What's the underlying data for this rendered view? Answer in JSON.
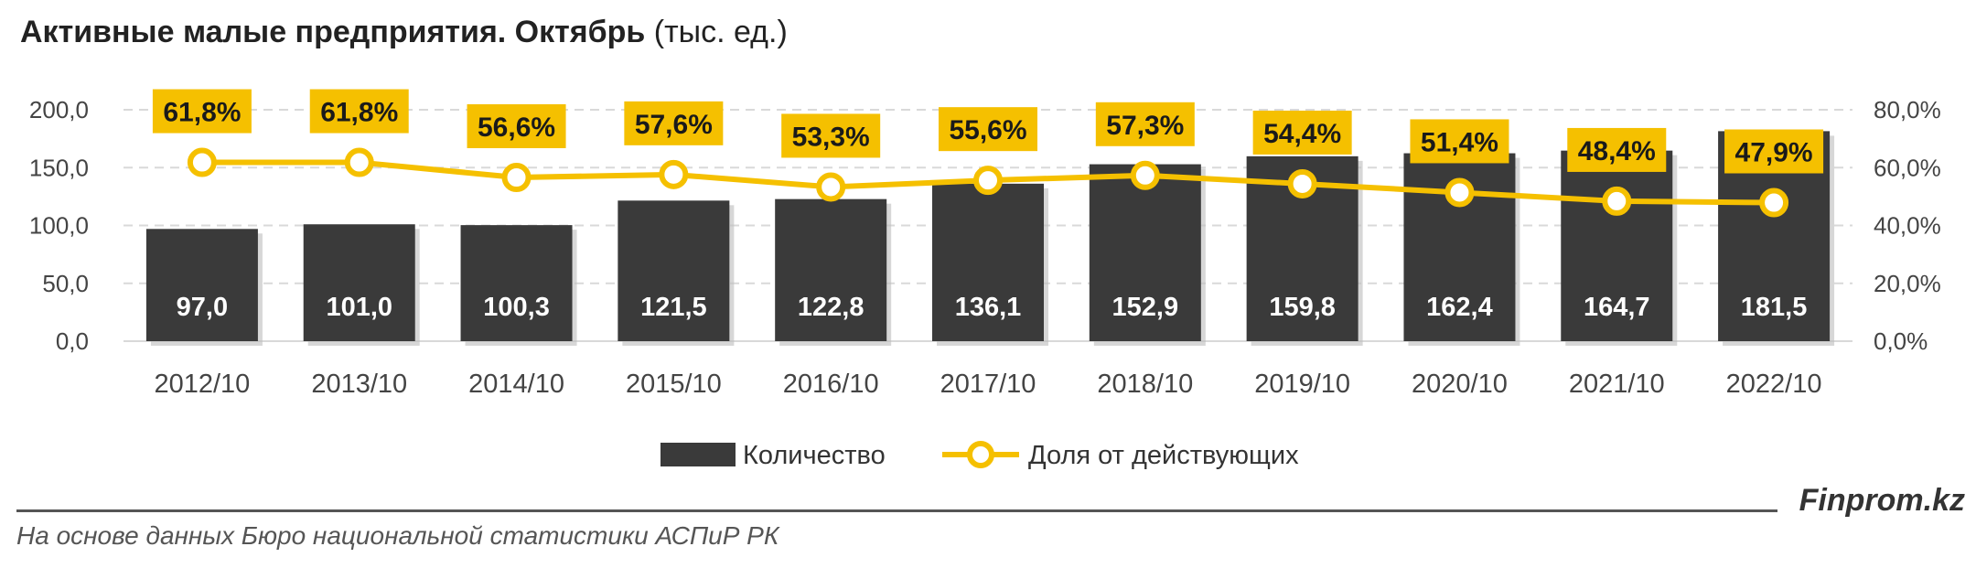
{
  "header": {
    "title_bold": "Активные малые предприятия. Октябрь",
    "title_unit": "(тыс. ед.)"
  },
  "chart_data": {
    "type": "bar",
    "categories": [
      "2012/10",
      "2013/10",
      "2014/10",
      "2015/10",
      "2016/10",
      "2017/10",
      "2018/10",
      "2019/10",
      "2020/10",
      "2021/10",
      "2022/10"
    ],
    "series": [
      {
        "name": "Количество",
        "type": "bar",
        "axis": "left",
        "color": "#3a3a3a",
        "values": [
          97.0,
          101.0,
          100.3,
          121.5,
          122.8,
          136.1,
          152.9,
          159.8,
          162.4,
          164.7,
          181.5
        ],
        "labels": [
          "97,0",
          "101,0",
          "100,3",
          "121,5",
          "122,8",
          "136,1",
          "152,9",
          "159,8",
          "162,4",
          "164,7",
          "181,5"
        ]
      },
      {
        "name": "Доля от действующих",
        "type": "line",
        "axis": "right",
        "color": "#f5c000",
        "values": [
          61.8,
          61.8,
          56.6,
          57.6,
          53.3,
          55.6,
          57.3,
          54.4,
          51.4,
          48.4,
          47.9
        ],
        "labels": [
          "61,8%",
          "61,8%",
          "56,6%",
          "57,6%",
          "53,3%",
          "55,6%",
          "57,3%",
          "54,4%",
          "51,4%",
          "48,4%",
          "47,9%"
        ]
      }
    ],
    "y_left": {
      "range": [
        0,
        200
      ],
      "ticks": [
        "0,0",
        "50,0",
        "100,0",
        "150,0",
        "200,0"
      ]
    },
    "y_right": {
      "range": [
        0,
        80
      ],
      "ticks": [
        "0,0%",
        "20,0%",
        "40,0%",
        "60,0%",
        "80,0%"
      ]
    },
    "grid": true,
    "legend_position": "bottom"
  },
  "footer": {
    "brand": "Finprom.kz",
    "source": "На основе данных Бюро национальной статистики АСПиР РК"
  }
}
